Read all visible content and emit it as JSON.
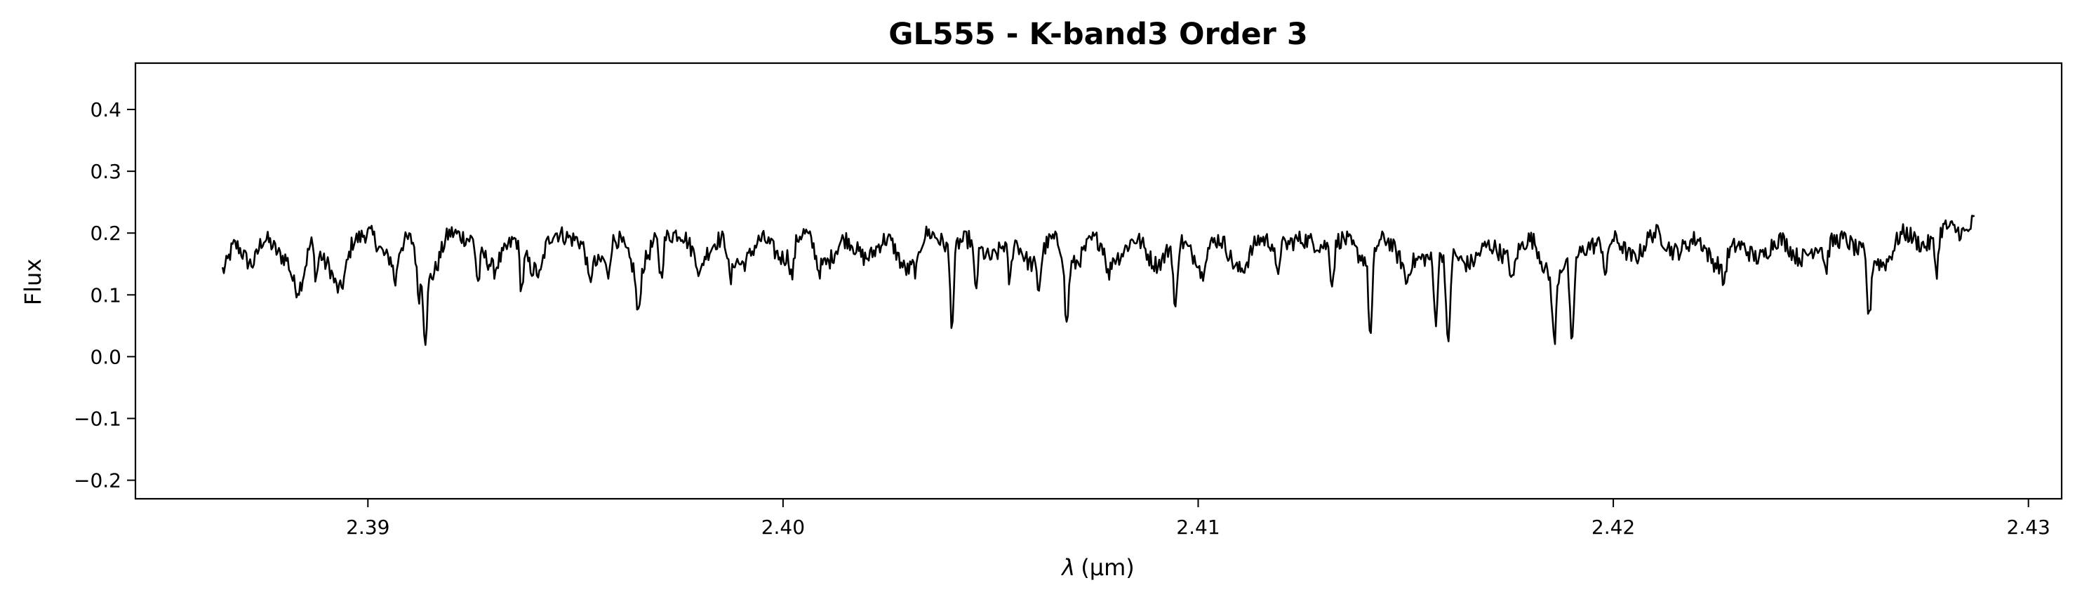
{
  "chart_data": {
    "type": "line",
    "title": "GL555 - K-band3 Order 3",
    "xlabel_prefix": "λ",
    "xlabel_unit": "(μm)",
    "ylabel": "Flux",
    "xlim": [
      2.3844,
      2.4308
    ],
    "ylim": [
      -0.23,
      0.475
    ],
    "xticks": [
      2.39,
      2.4,
      2.41,
      2.42,
      2.43
    ],
    "xtick_labels": [
      "2.39",
      "2.40",
      "2.41",
      "2.42",
      "2.43"
    ],
    "yticks": [
      -0.2,
      -0.1,
      0.0,
      0.1,
      0.2,
      0.3,
      0.4
    ],
    "ytick_labels": [
      "−0.2",
      "−0.1",
      "0.0",
      "0.1",
      "0.2",
      "0.3",
      "0.4"
    ],
    "grid": false,
    "line_color": "#000000",
    "series": [
      {
        "x_start": 2.3865,
        "x_end": 2.4287,
        "anchors": [
          [
            2.3865,
            0.14
          ],
          [
            2.3868,
            0.18
          ],
          [
            2.3872,
            0.15
          ],
          [
            2.3875,
            0.19
          ],
          [
            2.388,
            0.16
          ],
          [
            2.3883,
            0.11
          ],
          [
            2.3887,
            0.19
          ],
          [
            2.389,
            0.15
          ],
          [
            2.3893,
            0.11
          ],
          [
            2.3897,
            0.19
          ],
          [
            2.39,
            0.2
          ],
          [
            2.3905,
            0.16
          ],
          [
            2.391,
            0.19
          ],
          [
            2.3915,
            0.13
          ],
          [
            2.392,
            0.2
          ],
          [
            2.3925,
            0.19
          ],
          [
            2.393,
            0.15
          ],
          [
            2.3936,
            0.19
          ],
          [
            2.394,
            0.14
          ],
          [
            2.3945,
            0.2
          ],
          [
            2.395,
            0.19
          ],
          [
            2.3955,
            0.15
          ],
          [
            2.396,
            0.19
          ],
          [
            2.3965,
            0.14
          ],
          [
            2.397,
            0.19
          ],
          [
            2.3975,
            0.2
          ],
          [
            2.398,
            0.16
          ],
          [
            2.3985,
            0.19
          ],
          [
            2.399,
            0.15
          ],
          [
            2.3995,
            0.19
          ],
          [
            2.4,
            0.16
          ],
          [
            2.4005,
            0.2
          ],
          [
            2.401,
            0.15
          ],
          [
            2.4015,
            0.19
          ],
          [
            2.402,
            0.16
          ],
          [
            2.4025,
            0.19
          ],
          [
            2.403,
            0.14
          ],
          [
            2.4035,
            0.2
          ],
          [
            2.404,
            0.18
          ],
          [
            2.4045,
            0.19
          ],
          [
            2.405,
            0.16
          ],
          [
            2.4055,
            0.19
          ],
          [
            2.406,
            0.15
          ],
          [
            2.4065,
            0.19
          ],
          [
            2.407,
            0.15
          ],
          [
            2.4075,
            0.19
          ],
          [
            2.408,
            0.16
          ],
          [
            2.4085,
            0.19
          ],
          [
            2.409,
            0.15
          ],
          [
            2.4095,
            0.19
          ],
          [
            2.41,
            0.16
          ],
          [
            2.4105,
            0.19
          ],
          [
            2.411,
            0.14
          ],
          [
            2.4115,
            0.19
          ],
          [
            2.412,
            0.18
          ],
          [
            2.4125,
            0.19
          ],
          [
            2.413,
            0.18
          ],
          [
            2.4135,
            0.19
          ],
          [
            2.414,
            0.16
          ],
          [
            2.4145,
            0.19
          ],
          [
            2.415,
            0.15
          ],
          [
            2.4155,
            0.16
          ],
          [
            2.416,
            0.17
          ],
          [
            2.4165,
            0.15
          ],
          [
            2.417,
            0.18
          ],
          [
            2.4175,
            0.16
          ],
          [
            2.418,
            0.19
          ],
          [
            2.4185,
            0.13
          ],
          [
            2.419,
            0.16
          ],
          [
            2.4195,
            0.18
          ],
          [
            2.42,
            0.19
          ],
          [
            2.4205,
            0.16
          ],
          [
            2.421,
            0.2
          ],
          [
            2.4215,
            0.17
          ],
          [
            2.422,
            0.19
          ],
          [
            2.4225,
            0.15
          ],
          [
            2.423,
            0.18
          ],
          [
            2.4235,
            0.16
          ],
          [
            2.424,
            0.19
          ],
          [
            2.4245,
            0.16
          ],
          [
            2.425,
            0.18
          ],
          [
            2.4255,
            0.19
          ],
          [
            2.426,
            0.17
          ],
          [
            2.4265,
            0.15
          ],
          [
            2.427,
            0.2
          ],
          [
            2.4275,
            0.18
          ],
          [
            2.428,
            0.21
          ],
          [
            2.4285,
            0.2
          ],
          [
            2.4287,
            0.22
          ]
        ],
        "dips": [
          [
            2.38833,
            0.11
          ],
          [
            2.38875,
            0.13
          ],
          [
            2.38935,
            0.11
          ],
          [
            2.39066,
            0.12
          ],
          [
            2.39122,
            0.1
          ],
          [
            2.39138,
            0.03
          ],
          [
            2.39265,
            0.12
          ],
          [
            2.39305,
            0.14
          ],
          [
            2.3937,
            0.11
          ],
          [
            2.39415,
            0.13
          ],
          [
            2.39533,
            0.12
          ],
          [
            2.39578,
            0.13
          ],
          [
            2.39651,
            0.065
          ],
          [
            2.39706,
            0.13
          ],
          [
            2.398,
            0.13
          ],
          [
            2.39873,
            0.12
          ],
          [
            2.40022,
            0.13
          ],
          [
            2.40086,
            0.14
          ],
          [
            2.40322,
            0.14
          ],
          [
            2.40407,
            0.055
          ],
          [
            2.40464,
            0.11
          ],
          [
            2.40546,
            0.12
          ],
          [
            2.40616,
            0.11
          ],
          [
            2.40683,
            0.05
          ],
          [
            2.40784,
            0.13
          ],
          [
            2.40945,
            0.07
          ],
          [
            2.41009,
            0.13
          ],
          [
            2.4119,
            0.13
          ],
          [
            2.41323,
            0.12
          ],
          [
            2.41415,
            0.03
          ],
          [
            2.41502,
            0.12
          ],
          [
            2.41572,
            0.06
          ],
          [
            2.41602,
            0.01
          ],
          [
            2.41757,
            0.12
          ],
          [
            2.41858,
            0.02
          ],
          [
            2.419,
            0.01
          ],
          [
            2.41982,
            0.13
          ],
          [
            2.42266,
            0.12
          ],
          [
            2.42512,
            0.14
          ],
          [
            2.42616,
            0.06
          ],
          [
            2.42779,
            0.14
          ]
        ]
      }
    ]
  }
}
